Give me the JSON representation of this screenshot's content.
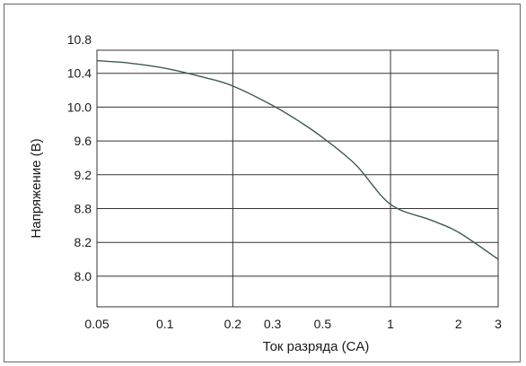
{
  "chart_data": {
    "type": "line",
    "title": "",
    "xlabel": "Ток разряда (CA)",
    "ylabel": "Напряжение (В)",
    "x_scale": "log",
    "xlim": [
      0.05,
      3
    ],
    "ylim": [
      7.8,
      10.8
    ],
    "grid": true,
    "legend": "none",
    "x_tick_labels": [
      "0.05",
      "0.1",
      "0.2",
      "0.3",
      "0.5",
      "1",
      "2",
      "3"
    ],
    "y_tick_labels": [
      "10.8",
      "10.4",
      "10.0",
      "9.6",
      "9.2",
      "8.8",
      "8.2",
      "8.0"
    ],
    "y_gridlines": [
      10.4,
      10.0,
      9.6,
      9.2,
      8.8,
      8.2,
      8.0
    ],
    "x_gridlines": [
      0.2,
      1
    ],
    "series": [
      {
        "color": "#3d5a50",
        "x": [
          0.05,
          0.07,
          0.1,
          0.15,
          0.2,
          0.3,
          0.4,
          0.5,
          0.7,
          1.0,
          1.5,
          2.0,
          3.0
        ],
        "y": [
          10.55,
          10.52,
          10.46,
          10.35,
          10.25,
          10.02,
          9.82,
          9.64,
          9.32,
          8.85,
          8.6,
          8.38,
          8.1
        ]
      }
    ],
    "colors": {
      "grid": "#333333",
      "frame": "#666666",
      "curve": "#3d5a50"
    }
  }
}
